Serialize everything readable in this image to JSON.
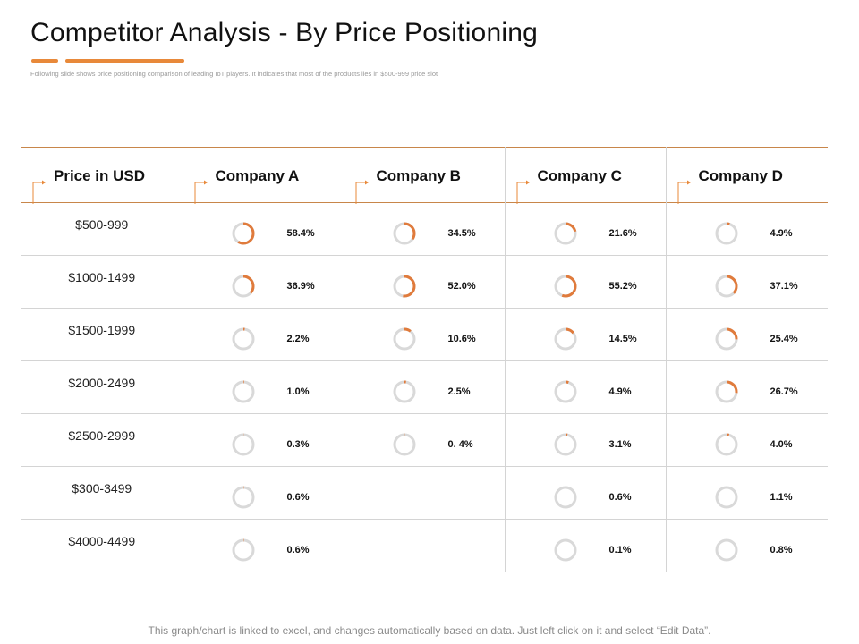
{
  "slide": {
    "title": "Competitor Analysis - By Price Positioning",
    "subtitle": "Following slide shows price positioning comparison of leading IoT players. It indicates that most of the products lies in $500-999 price slot",
    "footer": "This graph/chart is linked to excel, and changes automatically based on data. Just left click on it and select “Edit Data”."
  },
  "colors": {
    "accent": "#e8893a",
    "ring_track": "#d9d9d9",
    "ring_fill": "#e07b3c"
  },
  "chart_data": {
    "type": "table",
    "columns": [
      "Price in USD",
      "Company A",
      "Company B",
      "Company C",
      "Company D"
    ],
    "rows": [
      {
        "price": "$500-999",
        "cells": [
          {
            "label": "58.4%",
            "value": 58.4
          },
          {
            "label": "34.5%",
            "value": 34.5
          },
          {
            "label": "21.6%",
            "value": 21.6
          },
          {
            "label": "4.9%",
            "value": 4.9
          }
        ]
      },
      {
        "price": "$1000-1499",
        "cells": [
          {
            "label": "36.9%",
            "value": 36.9
          },
          {
            "label": "52.0%",
            "value": 52.0
          },
          {
            "label": "55.2%",
            "value": 55.2
          },
          {
            "label": "37.1%",
            "value": 37.1
          }
        ]
      },
      {
        "price": "$1500-1999",
        "cells": [
          {
            "label": "2.2%",
            "value": 2.2
          },
          {
            "label": "10.6%",
            "value": 10.6
          },
          {
            "label": "14.5%",
            "value": 14.5
          },
          {
            "label": "25.4%",
            "value": 25.4
          }
        ]
      },
      {
        "price": "$2000-2499",
        "cells": [
          {
            "label": "1.0%",
            "value": 1.0
          },
          {
            "label": "2.5%",
            "value": 2.5
          },
          {
            "label": "4.9%",
            "value": 4.9
          },
          {
            "label": "26.7%",
            "value": 26.7
          }
        ]
      },
      {
        "price": "$2500-2999",
        "cells": [
          {
            "label": "0.3%",
            "value": 0.3
          },
          {
            "label": "0. 4%",
            "value": 0.4
          },
          {
            "label": "3.1%",
            "value": 3.1
          },
          {
            "label": "4.0%",
            "value": 4.0
          }
        ]
      },
      {
        "price": "$300-3499",
        "cells": [
          {
            "label": "0.6%",
            "value": 0.6
          },
          null,
          {
            "label": "0.6%",
            "value": 0.6
          },
          {
            "label": "1.1%",
            "value": 1.1
          }
        ]
      },
      {
        "price": "$4000-4499",
        "cells": [
          {
            "label": "0.6%",
            "value": 0.6
          },
          null,
          {
            "label": "0.1%",
            "value": 0.1
          },
          {
            "label": "0.8%",
            "value": 0.8
          }
        ]
      }
    ]
  }
}
